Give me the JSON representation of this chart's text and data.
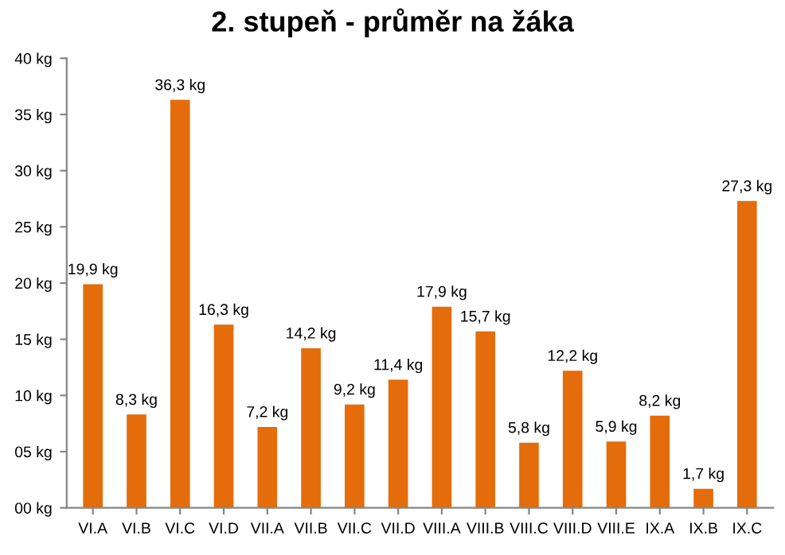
{
  "chart_data": {
    "type": "bar",
    "title": "2. stupeň - průměr na žáka",
    "categories": [
      "VI.A",
      "VI.B",
      "VI.C",
      "VI.D",
      "VII.A",
      "VII.B",
      "VII.C",
      "VII.D",
      "VIII.A",
      "VIII.B",
      "VIII.C",
      "VIII.D",
      "VIII.E",
      "IX.A",
      "IX.B",
      "IX.C"
    ],
    "values": [
      19.9,
      8.3,
      36.3,
      16.3,
      7.2,
      14.2,
      9.2,
      11.4,
      17.9,
      15.7,
      5.8,
      12.2,
      5.9,
      8.2,
      1.7,
      27.3
    ],
    "value_labels": [
      "19,9 kg",
      "8,3 kg",
      "36,3 kg",
      "16,3 kg",
      "7,2 kg",
      "14,2 kg",
      "9,2 kg",
      "11,4 kg",
      "17,9 kg",
      "15,7 kg",
      "5,8 kg",
      "12,2 kg",
      "5,9 kg",
      "8,2 kg",
      "1,7 kg",
      "27,3 kg"
    ],
    "color": "#e46c0a",
    "ylim": [
      0,
      40
    ],
    "yticks": [
      {
        "value": 0,
        "label": "00 kg"
      },
      {
        "value": 5,
        "label": "05 kg"
      },
      {
        "value": 10,
        "label": "10 kg"
      },
      {
        "value": 15,
        "label": "15 kg"
      },
      {
        "value": 20,
        "label": "20 kg"
      },
      {
        "value": 25,
        "label": "25 kg"
      },
      {
        "value": 30,
        "label": "30 kg"
      },
      {
        "value": 35,
        "label": "35 kg"
      },
      {
        "value": 40,
        "label": "40 kg"
      }
    ],
    "grid": false,
    "legend": false
  }
}
